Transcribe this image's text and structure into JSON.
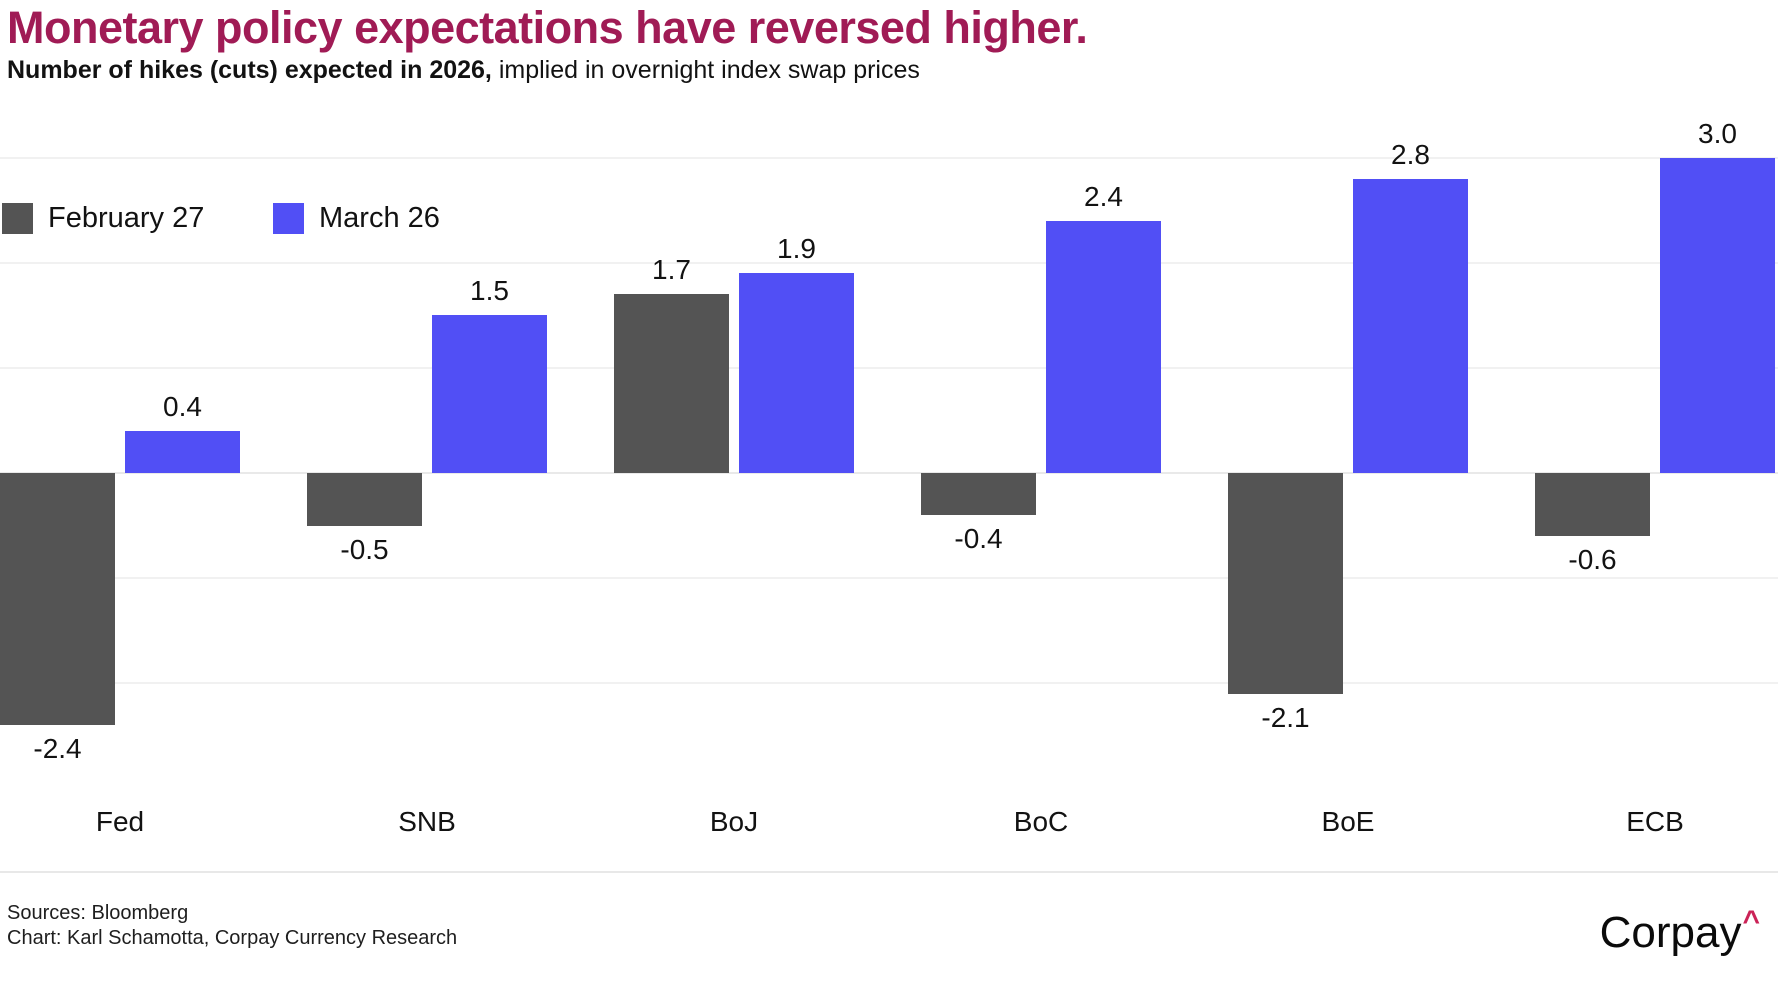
{
  "header": {
    "title": "Monetary policy expectations have reversed higher.",
    "subtitle_bold": "Number of hikes (cuts) expected in 2026,",
    "subtitle_rest": " implied in overnight index swap prices"
  },
  "chart_data": {
    "type": "bar",
    "title": "Number of hikes (cuts) expected in 2026, implied in overnight index swap prices",
    "categories": [
      "Fed",
      "SNB",
      "BoJ",
      "BoC",
      "BoE",
      "ECB"
    ],
    "series": [
      {
        "name": "February 27",
        "color": "#545454",
        "values": [
          -2.4,
          -0.5,
          1.7,
          -0.4,
          -2.1,
          -0.6
        ]
      },
      {
        "name": "March 26",
        "color": "#514FF5",
        "values": [
          0.4,
          1.5,
          1.9,
          2.4,
          2.8,
          3.0
        ]
      }
    ],
    "value_labels": [
      "-2.4",
      "0.4",
      "-0.5",
      "1.5",
      "1.7",
      "1.9",
      "-0.4",
      "2.4",
      "-2.1",
      "2.8",
      "-0.6",
      "3.0"
    ],
    "ylim": [
      -2.5,
      3.2
    ],
    "gridline_values": [
      3,
      2,
      1,
      0,
      -1,
      -2
    ],
    "grid": "horizontal-only",
    "legend_position": "top-left",
    "xlabel": "",
    "ylabel": ""
  },
  "footer": {
    "sources": "Sources: Bloomberg",
    "credit": "Chart: Karl Schamotta, Corpay Currency Research",
    "logo_text": "Corpay",
    "logo_caret": "^"
  },
  "colors": {
    "title_accent": "#A01B55",
    "bar_gray": "#545454",
    "bar_blue": "#514FF5",
    "gridline": "#f1f1f1",
    "zero_line": "#e9e9e9",
    "divider": "#e8e8e8",
    "logo_caret_red": "#CB2357"
  }
}
